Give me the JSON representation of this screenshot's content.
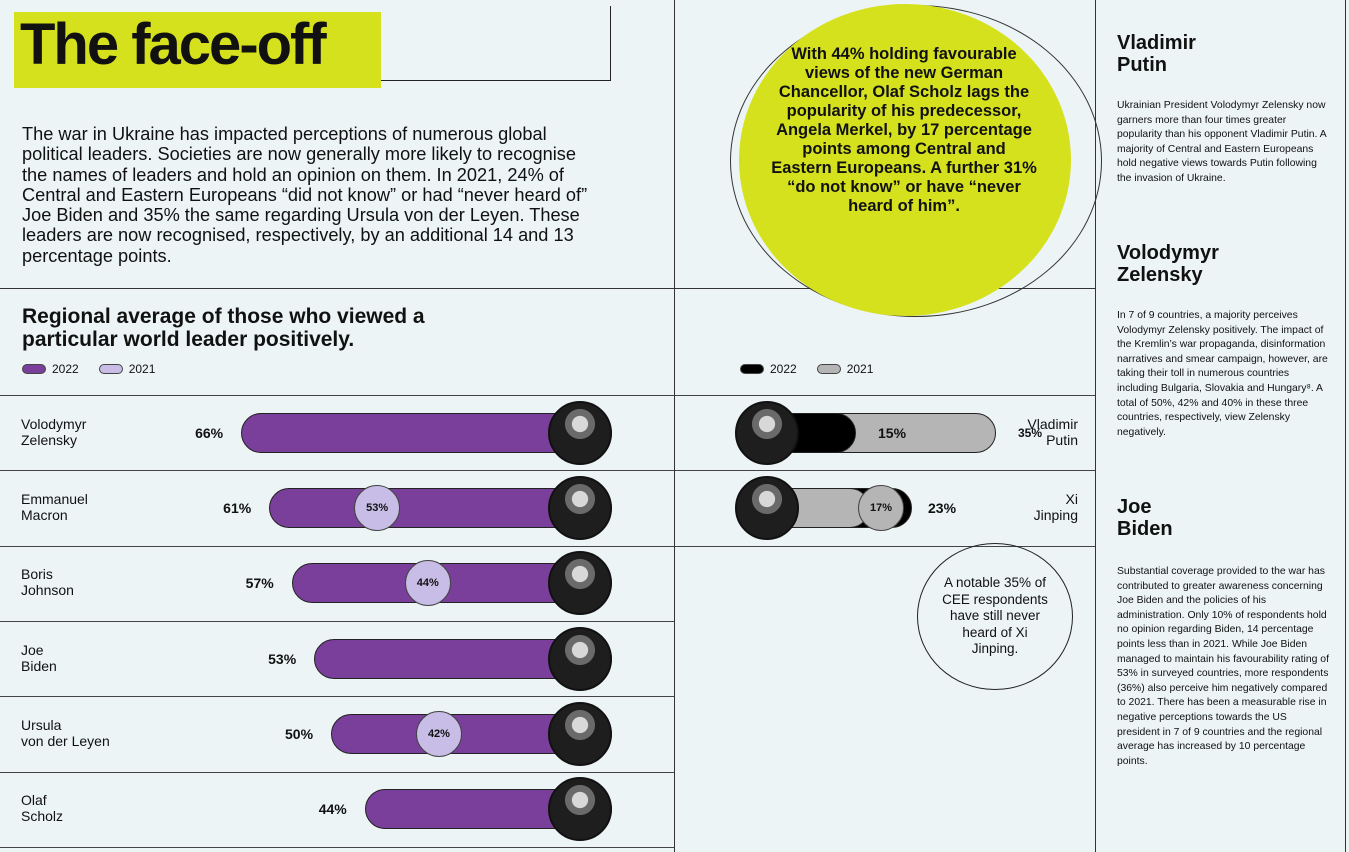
{
  "title": "The face-off",
  "intro": "The war in Ukraine has impacted perceptions of numerous global political leaders. Societies are now generally more likely to recognise the names of leaders and hold an opinion on them. In 2021, 24% of Central and Eastern Europeans “did not know” or had “never heard of” Joe Biden and 35% the same regarding Ursula von der Leyen. These leaders are now recognised, respectively, by an additional 14 and 13 percentage points.",
  "callout": "With 44% holding favourable views of the new German Chancellor, Olaf Scholz lags the popularity of his predecessor, Angela Merkel, by 17 percentage points among Central and Eastern Europeans. A further 31% “do not know” or have “never heard of him”.",
  "xi_note": "A notable 35% of CEE respondents have still never heard of Xi Jinping.",
  "colors": {
    "accent": "#d6e11e",
    "bar_2022": "#7a3f9a",
    "bar_2021": "#c7bde6",
    "right_2022": "#000000",
    "right_2021": "#b5b5b5"
  },
  "chart_data": {
    "type": "bar",
    "title": "Regional average of those who viewed a particular world leader positively.",
    "legend": [
      "2022",
      "2021"
    ],
    "right_legend": [
      "2022",
      "2021"
    ],
    "left_series": [
      {
        "name": "Volodymyr Zelensky",
        "line1": "Volodymyr",
        "line2": "Zelensky",
        "v2022": 66,
        "v2021": null,
        "label2022": "66%",
        "label2021": ""
      },
      {
        "name": "Emmanuel Macron",
        "line1": "Emmanuel",
        "line2": "Macron",
        "v2022": 61,
        "v2021": 53,
        "label2022": "61%",
        "label2021": "53%"
      },
      {
        "name": "Boris Johnson",
        "line1": "Boris",
        "line2": "Johnson",
        "v2022": 57,
        "v2021": 44,
        "label2022": "57%",
        "label2021": "44%"
      },
      {
        "name": "Joe Biden",
        "line1": "Joe",
        "line2": "Biden",
        "v2022": 53,
        "v2021": null,
        "label2022": "53%",
        "label2021": ""
      },
      {
        "name": "Ursula von der Leyen",
        "line1": "Ursula",
        "line2": "von der Leyen",
        "v2022": 50,
        "v2021": 42,
        "label2022": "50%",
        "label2021": "42%"
      },
      {
        "name": "Olaf Scholz",
        "line1": "Olaf",
        "line2": "Scholz",
        "v2022": 44,
        "v2021": null,
        "label2022": "44%",
        "label2021": ""
      }
    ],
    "right_series": [
      {
        "name": "Vladimir Putin",
        "line1": "Vladimir",
        "line2": "Putin",
        "v2022": 15,
        "v2021": 35,
        "label2022": "15%",
        "label2021": "35%"
      },
      {
        "name": "Xi Jinping",
        "line1": "Xi",
        "line2": "Jinping",
        "v2022": 23,
        "v2021": 17,
        "label2022": "23%",
        "label2021": "17%"
      }
    ]
  },
  "sidebar": [
    {
      "heading1": "Vladimir",
      "heading2": "Putin",
      "text": "Ukrainian President Volodymyr Zelensky now garners more than four times greater popularity than his opponent Vladimir Putin. A majority of Central and Eastern Europeans hold negative views towards Putin following the invasion of Ukraine."
    },
    {
      "heading1": "Volodymyr",
      "heading2": "Zelensky",
      "text": "In 7 of 9 countries, a majority perceives Volodymyr Zelensky positively. The impact of the Kremlin’s war propaganda, disinformation narratives and smear campaign, however, are taking their toll in numerous countries including Bulgaria, Slovakia and Hungary⁸. A total of 50%, 42% and 40% in these three countries, respectively, view Zelensky negatively."
    },
    {
      "heading1": "Joe",
      "heading2": "Biden",
      "text": "Substantial coverage provided to the war has contributed to greater awareness concerning Joe Biden and the policies of his administration. Only 10% of respondents hold no opinion regarding Biden, 14 percentage points less than in 2021. While Joe Biden managed to maintain his favourability rating of 53% in surveyed countries, more respondents (36%) also perceive him negatively compared to 2021. There has been a measurable rise in negative perceptions towards the US president in 7 of 9 countries and the regional average has increased by 10 percentage points."
    }
  ]
}
